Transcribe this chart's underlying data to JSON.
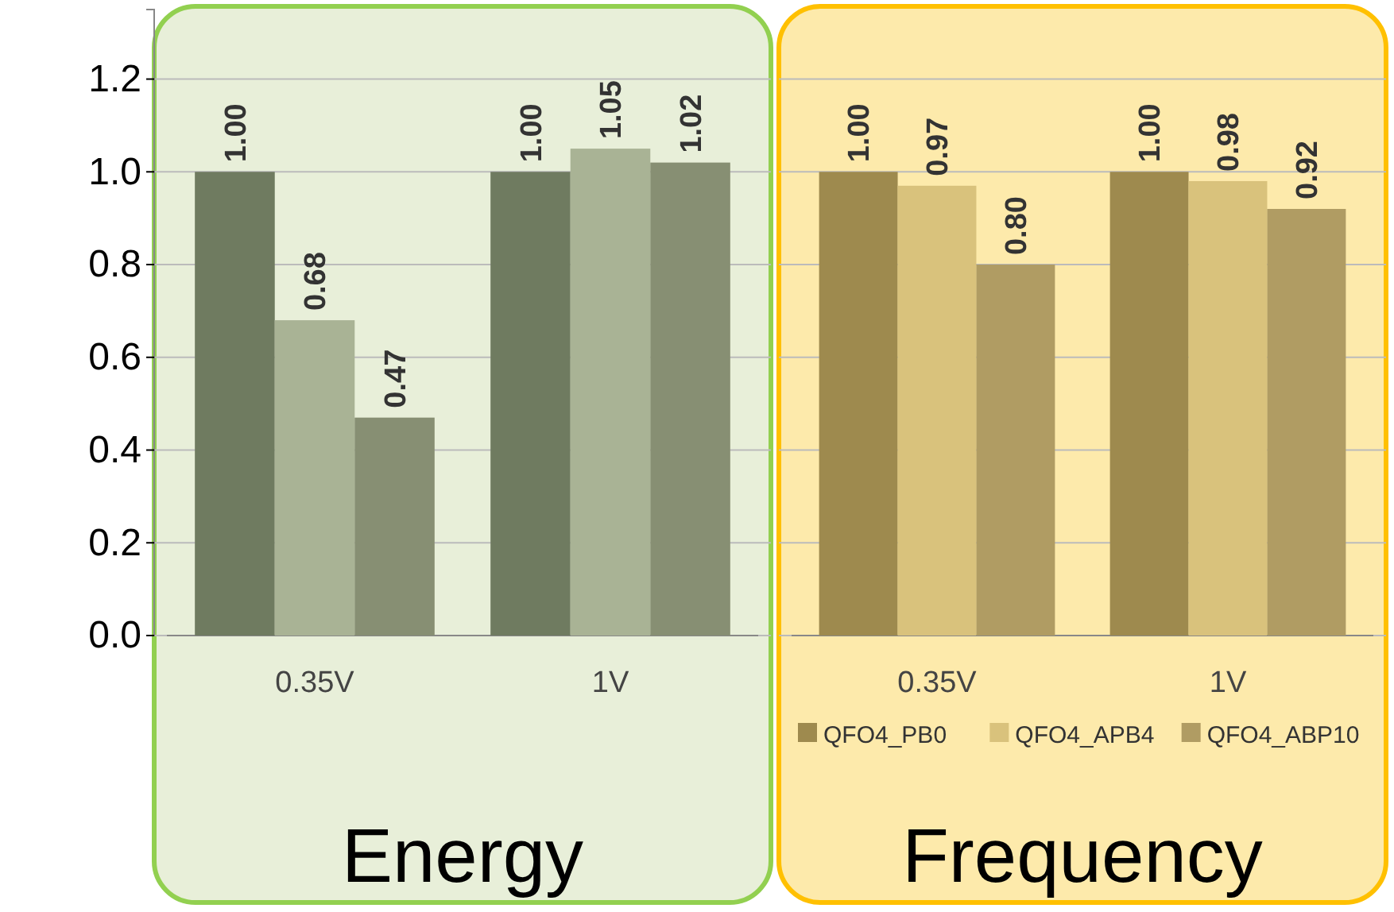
{
  "chart_data": [
    {
      "type": "bar",
      "xlabel": "Energy",
      "categories": [
        "0.35V",
        "1V"
      ],
      "series": [
        {
          "color": "#6f7b60",
          "values": [
            1.0,
            1.0
          ],
          "value_labels": [
            "1.00",
            "1.00"
          ]
        },
        {
          "color": "#a9b395",
          "values": [
            0.68,
            1.05
          ],
          "value_labels": [
            "0.68",
            "1.05"
          ]
        },
        {
          "color": "#878f73",
          "values": [
            0.47,
            1.02
          ],
          "value_labels": [
            "0.47",
            "1.02"
          ]
        }
      ],
      "ylim": [
        0,
        1.35
      ],
      "yticks": [
        {
          "value": 0,
          "label": "0.0"
        },
        {
          "value": 0.2,
          "label": "0.2"
        },
        {
          "value": 0.4,
          "label": "0.4"
        },
        {
          "value": 0.6,
          "label": "0.6"
        },
        {
          "value": 0.8,
          "label": "0.8"
        },
        {
          "value": 1.0,
          "label": "1.0"
        },
        {
          "value": 1.2,
          "label": "1.2"
        }
      ],
      "grid": "y",
      "legend": false
    },
    {
      "type": "bar",
      "xlabel": "Frequency",
      "categories": [
        "0.35V",
        "1V"
      ],
      "series": [
        {
          "name": "QFO4_PB0",
          "color": "#9e8a4e",
          "values": [
            1.0,
            1.0
          ],
          "value_labels": [
            "1.00",
            "1.00"
          ]
        },
        {
          "name": "QFO4_APB4",
          "color": "#d9c27c",
          "values": [
            0.97,
            0.98
          ],
          "value_labels": [
            "0.97",
            "0.98"
          ]
        },
        {
          "name": "QFO4_ABP10",
          "color": "#b09c63",
          "values": [
            0.8,
            0.92
          ],
          "value_labels": [
            "0.80",
            "0.92"
          ]
        }
      ],
      "ylim": [
        0,
        1.35
      ],
      "yticks": [
        0,
        0.2,
        0.4,
        0.6,
        0.8,
        1.0,
        1.2
      ],
      "grid": "y",
      "legend": "bottom",
      "tick_labels": "x"
    }
  ]
}
